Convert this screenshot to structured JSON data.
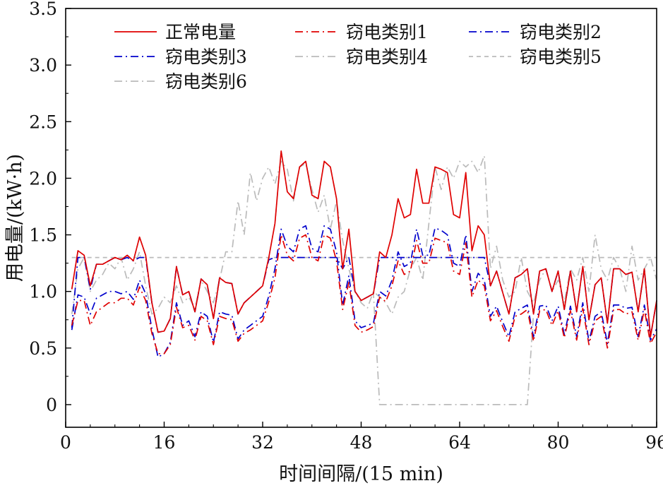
{
  "chart_data": {
    "type": "line",
    "title": "",
    "xlabel": "时间间隔/(15 min)",
    "ylabel": "用电量/(kW·h)",
    "xlim": [
      0,
      96
    ],
    "ylim": [
      -0.2,
      3.5
    ],
    "xticks": [
      0,
      16,
      32,
      48,
      64,
      80,
      96
    ],
    "yticks": [
      0,
      0.5,
      1.0,
      1.5,
      2.0,
      2.5,
      3.0,
      3.5
    ],
    "ytick_labels": [
      "0",
      "0.5",
      "1.0",
      "1.5",
      "2.0",
      "2.5",
      "3.0",
      "3.5"
    ],
    "grid": false,
    "legend_position": "top",
    "x": [
      1,
      2,
      3,
      4,
      5,
      6,
      7,
      8,
      9,
      10,
      11,
      12,
      13,
      14,
      15,
      16,
      17,
      18,
      19,
      20,
      21,
      22,
      23,
      24,
      25,
      26,
      27,
      28,
      29,
      30,
      31,
      32,
      33,
      34,
      35,
      36,
      37,
      38,
      39,
      40,
      41,
      42,
      43,
      44,
      45,
      46,
      47,
      48,
      49,
      50,
      51,
      52,
      53,
      54,
      55,
      56,
      57,
      58,
      59,
      60,
      61,
      62,
      63,
      64,
      65,
      66,
      67,
      68,
      69,
      70,
      71,
      72,
      73,
      74,
      75,
      76,
      77,
      78,
      79,
      80,
      81,
      82,
      83,
      84,
      85,
      86,
      87,
      88,
      89,
      90,
      91,
      92,
      93,
      94,
      95,
      96
    ],
    "series": [
      {
        "name": "正常电量",
        "color": "#e00000",
        "dash": "solid",
        "values": [
          1.02,
          1.36,
          1.32,
          1.05,
          1.24,
          1.24,
          1.27,
          1.3,
          1.28,
          1.32,
          1.27,
          1.48,
          1.32,
          0.9,
          0.64,
          0.65,
          0.76,
          1.22,
          0.97,
          1.0,
          0.82,
          1.11,
          1.06,
          0.76,
          1.12,
          1.08,
          1.07,
          0.8,
          0.9,
          0.95,
          1.0,
          1.05,
          1.3,
          1.6,
          2.24,
          1.88,
          1.82,
          2.1,
          2.15,
          1.85,
          1.82,
          2.15,
          2.1,
          1.82,
          1.2,
          1.55,
          1.0,
          0.92,
          0.95,
          0.98,
          1.35,
          1.3,
          1.5,
          1.82,
          1.65,
          1.68,
          2.08,
          1.78,
          1.78,
          2.1,
          2.08,
          2.05,
          1.68,
          1.65,
          2.05,
          1.36,
          1.58,
          1.5,
          1.05,
          1.18,
          0.99,
          0.8,
          1.12,
          1.15,
          1.2,
          0.8,
          1.18,
          1.2,
          1.0,
          1.18,
          0.84,
          1.18,
          0.82,
          1.22,
          0.75,
          1.06,
          1.12,
          0.72,
          1.2,
          1.2,
          1.15,
          1.17,
          0.82,
          1.2,
          0.6,
          0.92
        ]
      },
      {
        "name": "窃电类别1",
        "color": "#e00000",
        "dash": "dashdot",
        "values": [
          0.7,
          0.92,
          0.92,
          0.7,
          0.82,
          0.86,
          0.9,
          0.9,
          0.94,
          0.94,
          0.88,
          1.04,
          0.92,
          0.63,
          0.45,
          0.45,
          0.53,
          0.86,
          0.68,
          0.7,
          0.57,
          0.78,
          0.74,
          0.53,
          0.78,
          0.76,
          0.75,
          0.56,
          0.63,
          0.66,
          0.7,
          0.74,
          0.91,
          1.12,
          1.5,
          1.32,
          1.27,
          1.47,
          1.5,
          1.3,
          1.27,
          1.5,
          1.47,
          1.27,
          0.84,
          1.08,
          0.7,
          0.64,
          0.66,
          0.69,
          0.95,
          0.91,
          1.05,
          1.27,
          1.15,
          1.18,
          1.45,
          1.25,
          1.25,
          1.47,
          1.45,
          1.43,
          1.18,
          1.15,
          1.43,
          0.95,
          1.1,
          1.05,
          0.74,
          0.83,
          0.69,
          0.56,
          0.78,
          0.8,
          0.84,
          0.56,
          0.83,
          0.84,
          0.7,
          0.83,
          0.59,
          0.83,
          0.57,
          0.85,
          0.53,
          0.74,
          0.78,
          0.5,
          0.84,
          0.84,
          0.8,
          0.82,
          0.57,
          0.84,
          0.54,
          0.64
        ]
      },
      {
        "name": "窃电类别2",
        "color": "#0000cc",
        "dash": "dashdot",
        "values": [
          0.66,
          0.97,
          0.95,
          0.8,
          0.94,
          0.97,
          1.0,
          1.0,
          0.98,
          1.0,
          0.93,
          1.1,
          0.98,
          0.67,
          0.42,
          0.45,
          0.55,
          0.9,
          0.7,
          0.74,
          0.6,
          0.82,
          0.78,
          0.55,
          0.82,
          0.8,
          0.79,
          0.58,
          0.66,
          0.7,
          0.74,
          0.78,
          0.96,
          1.2,
          1.55,
          1.4,
          1.35,
          1.55,
          1.58,
          1.38,
          1.35,
          1.58,
          1.55,
          1.35,
          0.88,
          1.14,
          0.74,
          0.68,
          0.7,
          0.72,
          1.0,
          0.96,
          1.1,
          1.35,
          1.22,
          1.25,
          1.55,
          1.32,
          1.32,
          1.56,
          1.54,
          1.5,
          1.25,
          1.22,
          1.5,
          1.0,
          1.16,
          1.1,
          0.78,
          0.87,
          0.73,
          0.6,
          0.82,
          0.85,
          0.88,
          0.6,
          0.87,
          0.88,
          0.74,
          0.87,
          0.62,
          0.87,
          0.6,
          0.9,
          0.56,
          0.78,
          0.82,
          0.54,
          0.88,
          0.88,
          0.85,
          0.86,
          0.6,
          0.88,
          0.57,
          0.67
        ]
      },
      {
        "name": "窃电类别3",
        "color": "#0000cc",
        "dash": "dashdot",
        "values": [
          0.68,
          1.3,
          1.3,
          1.02,
          1.24,
          1.24,
          1.27,
          1.3,
          1.28,
          1.3,
          1.27,
          1.3,
          1.3,
          0.9,
          0.64,
          0.65,
          0.76,
          1.22,
          0.97,
          1.0,
          0.82,
          1.11,
          1.06,
          0.76,
          1.12,
          1.08,
          1.07,
          0.8,
          0.9,
          0.95,
          1.0,
          1.05,
          1.28,
          1.3,
          1.3,
          1.3,
          1.3,
          1.3,
          1.3,
          1.3,
          1.3,
          1.3,
          1.3,
          1.3,
          1.2,
          1.3,
          1.0,
          0.92,
          0.95,
          0.98,
          1.3,
          1.3,
          1.3,
          1.3,
          1.3,
          1.3,
          1.3,
          1.3,
          1.3,
          1.3,
          1.3,
          1.3,
          1.3,
          1.3,
          1.3,
          1.3,
          1.3,
          1.3,
          1.05,
          1.18,
          0.99,
          0.8,
          1.12,
          1.15,
          1.2,
          0.8,
          1.18,
          1.2,
          1.0,
          1.18,
          0.84,
          1.18,
          0.82,
          1.22,
          0.75,
          1.06,
          1.12,
          0.72,
          1.2,
          1.2,
          1.15,
          1.17,
          0.82,
          1.2,
          0.6,
          0.92
        ]
      },
      {
        "name": "窃电类别4",
        "color": "#bbbbbb",
        "dash": "dashdot",
        "values": [
          1.02,
          1.36,
          1.32,
          1.05,
          1.24,
          1.24,
          1.27,
          1.3,
          1.28,
          1.32,
          1.27,
          1.48,
          1.32,
          0.9,
          0.64,
          0.65,
          0.76,
          1.22,
          0.97,
          1.0,
          0.82,
          1.11,
          1.06,
          0.76,
          1.12,
          1.08,
          1.07,
          0.8,
          0.9,
          0.95,
          1.0,
          1.05,
          1.3,
          1.6,
          2.24,
          1.88,
          1.82,
          2.1,
          2.15,
          1.85,
          1.82,
          2.15,
          2.1,
          1.82,
          1.2,
          1.55,
          1.0,
          0.92,
          0.95,
          0.98,
          0,
          0,
          0,
          0,
          0,
          0,
          0,
          0,
          0,
          0,
          0,
          0,
          0,
          0,
          0,
          0,
          0,
          0,
          0,
          0,
          0,
          0,
          0,
          0,
          0,
          0.8,
          1.18,
          1.2,
          1.0,
          1.18,
          0.84,
          1.18,
          0.82,
          1.22,
          0.75,
          1.06,
          1.12,
          0.72,
          1.2,
          1.2,
          1.15,
          1.17,
          0.82,
          1.2,
          0.6,
          0.92
        ]
      },
      {
        "name": "窃电类别5",
        "color": "#bbbbbb",
        "dash": "dashed",
        "values": [
          1.3,
          1.3,
          1.3,
          1.3,
          1.3,
          1.3,
          1.3,
          1.3,
          1.3,
          1.3,
          1.3,
          1.3,
          1.3,
          1.3,
          1.3,
          1.3,
          1.3,
          1.3,
          1.3,
          1.3,
          1.3,
          1.3,
          1.3,
          1.3,
          1.3,
          1.3,
          1.3,
          1.3,
          1.3,
          1.3,
          1.3,
          1.3,
          1.3,
          1.3,
          1.3,
          1.3,
          1.3,
          1.3,
          1.3,
          1.3,
          1.3,
          1.3,
          1.3,
          1.3,
          1.3,
          1.3,
          1.3,
          1.3,
          1.3,
          1.3,
          1.3,
          1.3,
          1.3,
          1.3,
          1.3,
          1.3,
          1.3,
          1.3,
          1.3,
          1.3,
          1.3,
          1.3,
          1.3,
          1.3,
          1.3,
          1.3,
          1.3,
          1.3,
          1.3,
          1.3,
          1.3,
          1.3,
          1.3,
          1.3,
          1.3,
          1.3,
          1.3,
          1.3,
          1.3,
          1.3,
          1.3,
          1.3,
          1.3,
          1.3,
          1.3,
          1.3,
          1.3,
          1.3,
          1.3,
          1.3,
          1.3,
          1.3,
          1.3,
          1.3,
          1.3,
          1.3
        ]
      },
      {
        "name": "窃电类别6",
        "color": "#bbbbbb",
        "dash": "dashdot",
        "values": [
          0.8,
          1.2,
          1.3,
          1.0,
          1.1,
          1.15,
          1.25,
          1.2,
          1.3,
          1.1,
          1.2,
          1.35,
          1.05,
          0.8,
          0.85,
          0.95,
          0.9,
          1.05,
          0.9,
          0.95,
          0.85,
          1.1,
          1.0,
          0.9,
          1.1,
          1.35,
          1.35,
          1.8,
          1.5,
          2.05,
          1.8,
          2.0,
          2.1,
          1.95,
          2.15,
          2.08,
          1.8,
          2.1,
          2.13,
          1.9,
          1.7,
          1.85,
          1.55,
          1.8,
          1.45,
          1.2,
          1.0,
          0.9,
          0.85,
          1.0,
          0.95,
          0.9,
          0.8,
          0.95,
          1.0,
          1.2,
          1.3,
          1.1,
          1.6,
          2.1,
          1.9,
          2.1,
          2.0,
          2.15,
          2.1,
          2.15,
          2.05,
          2.2,
          1.2,
          1.4,
          1.1,
          0.95,
          1.0,
          1.3,
          1.0,
          0.9,
          1.1,
          1.2,
          1.0,
          1.1,
          0.9,
          1.2,
          1.1,
          1.3,
          1.0,
          1.5,
          1.2,
          1.1,
          1.3,
          1.2,
          1.0,
          1.4,
          1.1,
          1.2,
          1.3,
          1.1
        ]
      }
    ]
  }
}
